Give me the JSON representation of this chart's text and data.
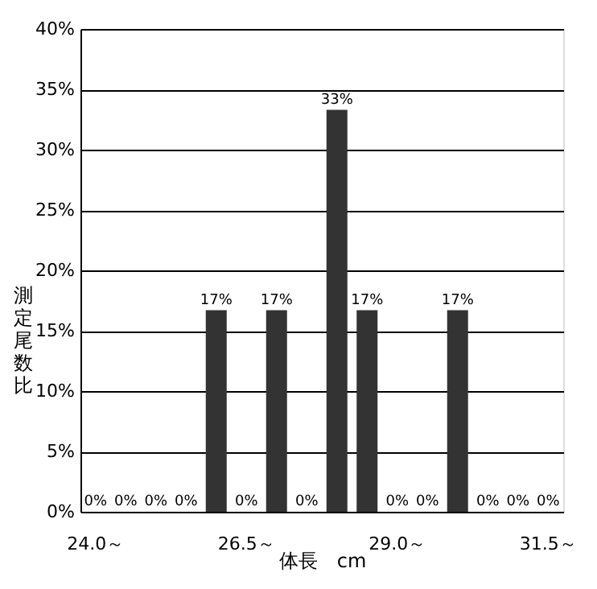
{
  "chart_data": {
    "type": "bar",
    "categories": [
      "24.0～",
      null,
      null,
      null,
      null,
      "26.5～",
      null,
      null,
      null,
      null,
      "29.0～",
      null,
      null,
      null,
      null,
      "31.5～"
    ],
    "values": [
      0,
      0,
      0,
      0,
      16.7,
      0,
      16.7,
      0,
      33.3,
      16.7,
      0,
      0,
      16.7,
      0,
      0,
      0
    ],
    "value_labels": [
      "0%",
      "0%",
      "0%",
      "0%",
      "17%",
      "0%",
      "17%",
      "0%",
      "33%",
      "17%",
      "0%",
      "0%",
      "17%",
      "0%",
      "0%",
      "0%"
    ],
    "color": "#333333",
    "xlabel": "体長　cm",
    "ylabel": "測定尾数比",
    "ylim": [
      0,
      40
    ],
    "yticks": [
      {
        "value": 0,
        "label": "0%"
      },
      {
        "value": 5,
        "label": "5%"
      },
      {
        "value": 10,
        "label": "10%"
      },
      {
        "value": 15,
        "label": "15%"
      },
      {
        "value": 20,
        "label": "20%"
      },
      {
        "value": 25,
        "label": "25%"
      },
      {
        "value": 30,
        "label": "30%"
      },
      {
        "value": 35,
        "label": "35%"
      },
      {
        "value": 40,
        "label": "40%"
      }
    ],
    "grid": "y"
  }
}
